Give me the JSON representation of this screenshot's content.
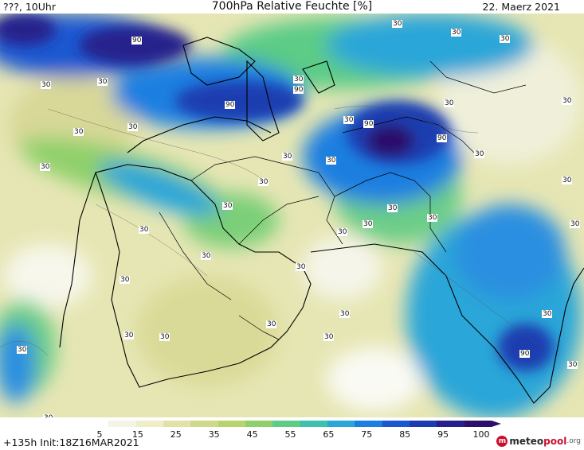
{
  "header": {
    "left": "???, 10Uhr",
    "title": "700hPa Relative Feuchte [%]",
    "date": "22. Maerz 2021"
  },
  "footer": {
    "run": "+135h  Init:18Z16MAR2021"
  },
  "legend": {
    "ticks": [
      "5",
      "15",
      "25",
      "35",
      "45",
      "55",
      "65",
      "75",
      "85",
      "95",
      "100"
    ],
    "colors": [
      "#ffffff",
      "#f4f4e6",
      "#eeeec8",
      "#e2e2a8",
      "#cfd98a",
      "#b9d36e",
      "#8fd06a",
      "#5ccc86",
      "#3dc0b0",
      "#2aa6d8",
      "#1c7fe0",
      "#1a58d0",
      "#1d3cb0",
      "#27208c",
      "#2b0f6b"
    ]
  },
  "brand": {
    "meteo": "meteo",
    "pool": "pool",
    "org": ".org"
  },
  "contour_labels": [
    "90",
    "90",
    "90",
    "90",
    "90",
    "90",
    "30",
    "30",
    "30",
    "30",
    "30",
    "30",
    "30",
    "30",
    "30",
    "30",
    "30",
    "30",
    "30",
    "30",
    "30",
    "30",
    "30",
    "30",
    "30",
    "30",
    "30",
    "30",
    "30",
    "30",
    "30",
    "30",
    "30",
    "30",
    "30",
    "30",
    "30",
    "30",
    "30",
    "30",
    "30",
    "30"
  ]
}
